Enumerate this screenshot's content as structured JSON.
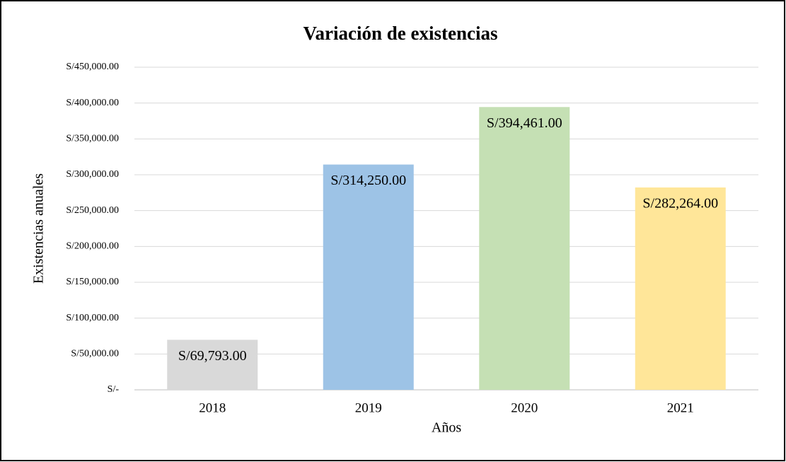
{
  "chart_data": {
    "type": "bar",
    "title": "Variación de existencias",
    "x_label": "Años",
    "y_label": "Existencias anuales",
    "categories": [
      "2018",
      "2019",
      "2020",
      "2021"
    ],
    "values": [
      69793,
      314250,
      394461,
      282264
    ],
    "value_labels": [
      "S/69,793.00",
      "S/314,250.00",
      "S/394,461.00",
      "S/282,264.00"
    ],
    "colors": [
      "#d9d9d9",
      "#9dc3e6",
      "#c5e0b4",
      "#ffe699"
    ],
    "ylim": [
      0,
      450000
    ],
    "yticks": [
      {
        "value": 0,
        "label": "S/-"
      },
      {
        "value": 50000,
        "label": "S/50,000.00"
      },
      {
        "value": 100000,
        "label": "S/100,000.00"
      },
      {
        "value": 150000,
        "label": "S/150,000.00"
      },
      {
        "value": 200000,
        "label": "S/200,000.00"
      },
      {
        "value": 250000,
        "label": "S/250,000.00"
      },
      {
        "value": 300000,
        "label": "S/300,000.00"
      },
      {
        "value": 350000,
        "label": "S/350,000.00"
      },
      {
        "value": 400000,
        "label": "S/400,000.00"
      },
      {
        "value": 450000,
        "label": "S/450,000.00"
      }
    ],
    "grid": true
  }
}
